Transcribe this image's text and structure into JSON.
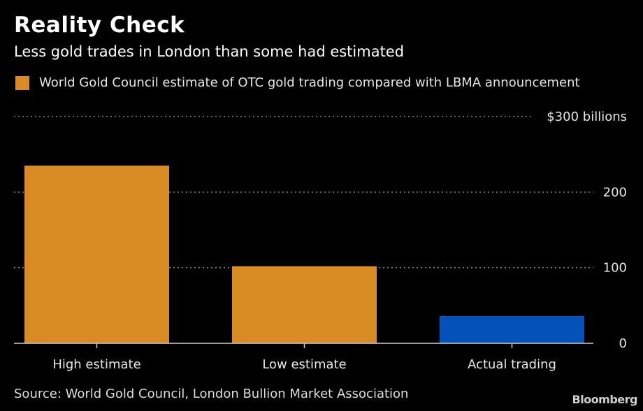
{
  "header": {
    "title": "Reality Check",
    "subtitle": "Less gold trades in London than some had estimated"
  },
  "legend": {
    "label": "World Gold Council estimate of OTC gold trading compared with LBMA announcement",
    "color": "#D98B24"
  },
  "footer": {
    "source": "Source: World Gold Council, London Bullion Market Association",
    "brand": "Bloomberg"
  },
  "chart_data": {
    "type": "bar",
    "title": "Reality Check",
    "subtitle": "Less gold trades in London than some had estimated",
    "categories": [
      "High estimate",
      "Low estimate",
      "Actual trading"
    ],
    "values": [
      235,
      102,
      36
    ],
    "colors": [
      "#D98B24",
      "#D98B24",
      "#0451BA"
    ],
    "xlabel": "",
    "ylabel": "$ billions",
    "ylim": [
      0,
      300
    ],
    "yticks": [
      0,
      100,
      200,
      300
    ],
    "ytick_labels": [
      "0",
      "100",
      "200",
      "$300 billions"
    ],
    "grid": true,
    "y_axis_side": "right",
    "legend": [
      {
        "label": "World Gold Council estimate of OTC gold trading compared with LBMA announcement",
        "color": "#D98B24"
      }
    ],
    "legend_position": "top-left"
  }
}
